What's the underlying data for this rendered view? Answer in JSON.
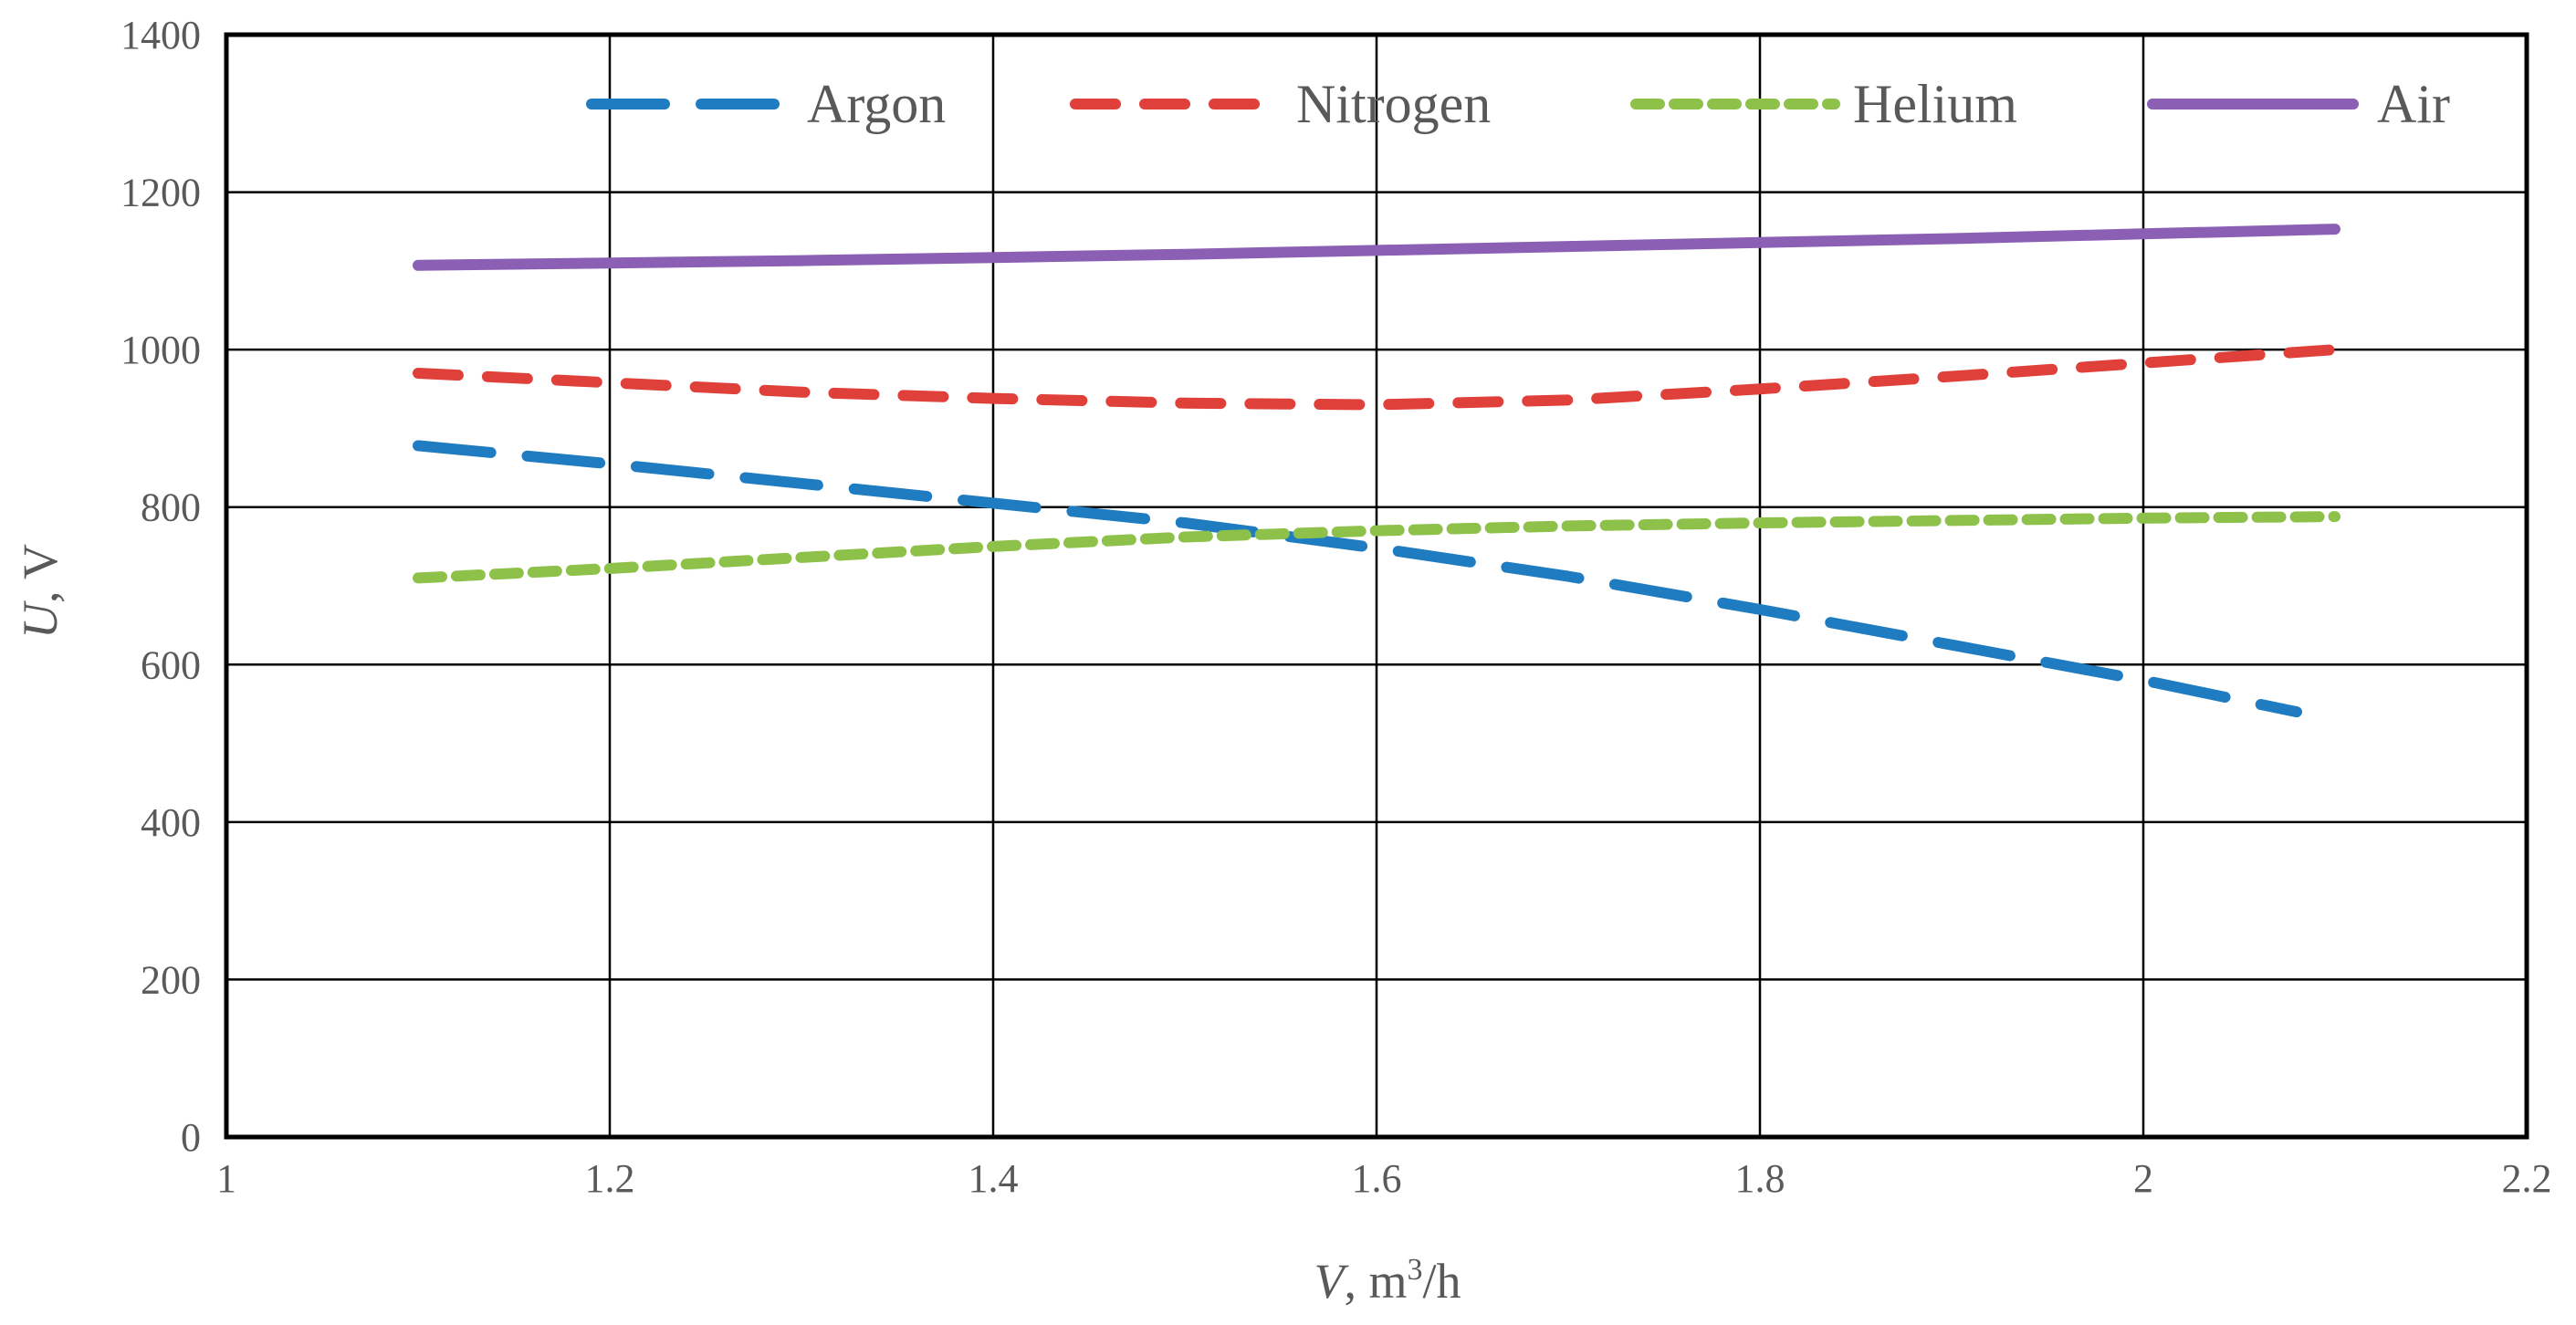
{
  "chart_data": {
    "type": "line",
    "title": "",
    "xlabel_italic": "V",
    "xlabel_rest": ", m",
    "xlabel_sup": "3",
    "xlabel_tail": "/h",
    "ylabel_italic": "U",
    "ylabel_rest": ", V",
    "xlim": [
      1,
      2.2
    ],
    "ylim": [
      0,
      1400
    ],
    "x_ticks": [
      1,
      1.2,
      1.4,
      1.6,
      1.8,
      2,
      2.2
    ],
    "x_tick_labels": [
      "1",
      "1.2",
      "1.4",
      "1.6",
      "1.8",
      "2",
      "2.2"
    ],
    "y_ticks": [
      0,
      200,
      400,
      600,
      800,
      1000,
      1200,
      1400
    ],
    "y_tick_labels": [
      "0",
      "200",
      "400",
      "600",
      "800",
      "1000",
      "1200",
      "1400"
    ],
    "grid": true,
    "legend_position": "top",
    "series": [
      {
        "name": "Argon",
        "color": "#1f7cc1",
        "style": "long-dash",
        "x": [
          1.1,
          1.2,
          1.3,
          1.4,
          1.5,
          1.6,
          1.7,
          1.8,
          1.9,
          2.0,
          2.08
        ],
        "y": [
          878,
          855,
          830,
          805,
          780,
          748,
          712,
          670,
          625,
          580,
          540
        ]
      },
      {
        "name": "Nitrogen",
        "color": "#e0403a",
        "style": "dash",
        "x": [
          1.1,
          1.2,
          1.3,
          1.4,
          1.5,
          1.6,
          1.7,
          1.8,
          1.9,
          2.0,
          2.1
        ],
        "y": [
          970,
          958,
          946,
          938,
          932,
          930,
          936,
          950,
          966,
          983,
          1000
        ]
      },
      {
        "name": "Helium",
        "color": "#8dc14a",
        "style": "short-dash",
        "x": [
          1.1,
          1.2,
          1.3,
          1.4,
          1.5,
          1.6,
          1.7,
          1.8,
          1.9,
          2.0,
          2.1
        ],
        "y": [
          710,
          722,
          736,
          750,
          762,
          770,
          776,
          780,
          783,
          786,
          788
        ]
      },
      {
        "name": "Air",
        "color": "#8b5fb4",
        "style": "solid",
        "x": [
          1.1,
          1.2,
          1.3,
          1.4,
          1.5,
          1.6,
          1.7,
          1.8,
          1.9,
          2.0,
          2.1
        ],
        "y": [
          1107,
          1110,
          1113,
          1117,
          1121,
          1126,
          1131,
          1136,
          1141,
          1147,
          1153
        ]
      }
    ]
  }
}
